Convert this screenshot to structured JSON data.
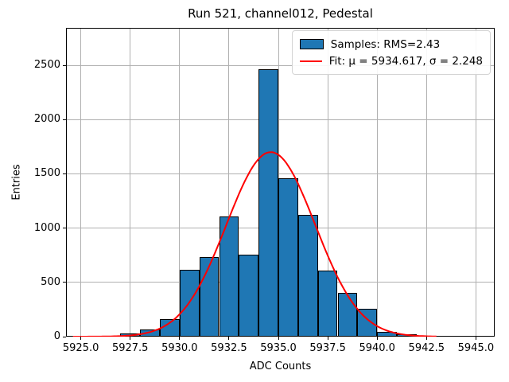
{
  "chart_data": {
    "type": "histogram",
    "title": "Run 521, channel012, Pedestal",
    "xlabel": "ADC Counts",
    "ylabel": "Entries",
    "grid": true,
    "legend_position": "upper right",
    "xlim": [
      5924.25,
      5945.95
    ],
    "ylim": [
      0,
      2845
    ],
    "bin_edges": [
      5927,
      5928,
      5929,
      5930,
      5931,
      5932,
      5933,
      5934,
      5935,
      5936,
      5937,
      5938,
      5939,
      5940,
      5941,
      5942
    ],
    "counts": [
      30,
      65,
      160,
      615,
      730,
      1105,
      755,
      2465,
      1460,
      1120,
      610,
      400,
      260,
      45,
      20
    ],
    "xticks": [
      {
        "v": 5925.0,
        "label": "5925.0"
      },
      {
        "v": 5927.5,
        "label": "5927.5"
      },
      {
        "v": 5930.0,
        "label": "5930.0"
      },
      {
        "v": 5932.5,
        "label": "5932.5"
      },
      {
        "v": 5935.0,
        "label": "5935.0"
      },
      {
        "v": 5937.5,
        "label": "5937.5"
      },
      {
        "v": 5940.0,
        "label": "5940.0"
      },
      {
        "v": 5942.5,
        "label": "5942.5"
      },
      {
        "v": 5945.0,
        "label": "5945.0"
      }
    ],
    "yticks": [
      {
        "v": 0,
        "label": "0"
      },
      {
        "v": 500,
        "label": "500"
      },
      {
        "v": 1000,
        "label": "1000"
      },
      {
        "v": 1500,
        "label": "1500"
      },
      {
        "v": 2000,
        "label": "2000"
      },
      {
        "v": 2500,
        "label": "2500"
      }
    ],
    "fit": {
      "mu": 5934.617,
      "sigma": 2.248,
      "amplitude": 1700,
      "x_start": 5924.6,
      "x_end": 5943.0
    },
    "legend": [
      {
        "label": "Samples: RMS=2.43",
        "swatch": "histogram-patch"
      },
      {
        "label": "Fit: μ = 5934.617, σ = 2.248",
        "swatch": "red-line"
      }
    ],
    "colors": {
      "bar_fill": "#1f77b4",
      "bar_edge": "#000000",
      "fit_line": "#ff0000",
      "grid": "#b0b0b0",
      "background": "#ffffff"
    }
  }
}
